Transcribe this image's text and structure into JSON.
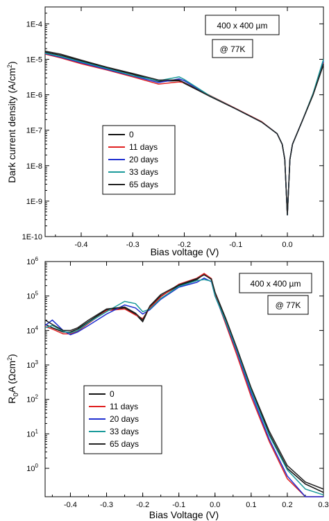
{
  "chart_data": [
    {
      "type": "line",
      "xlabel": "Bias voltage (V)",
      "ylabel": "Dark current density (A/cm",
      "ylabel_sup": "2",
      "ylabel_end": ")",
      "yscale": "log",
      "xlim": [
        -0.47,
        0.07
      ],
      "ylim": [
        1e-10,
        0.0003
      ],
      "x_ticks": [
        -0.4,
        -0.3,
        -0.2,
        -0.1,
        0.0
      ],
      "x_tick_labels": [
        "-0.4",
        "-0.3",
        "-0.2",
        "-0.1",
        "0.0"
      ],
      "y_ticks": [
        1e-10,
        1e-09,
        1e-08,
        1e-07,
        1e-06,
        1e-05,
        0.0001
      ],
      "y_tick_labels": [
        "1E-10",
        "1E-9",
        "1E-8",
        "1E-7",
        "1E-6",
        "1E-5",
        "1E-4"
      ],
      "annotations": [
        "400 x 400 µm",
        "@ 77K"
      ],
      "legend_position": "left-middle",
      "series": [
        {
          "name": "0",
          "color": "#111111",
          "x": [
            -0.47,
            -0.44,
            -0.4,
            -0.35,
            -0.3,
            -0.25,
            -0.21,
            -0.2,
            -0.15,
            -0.1,
            -0.05,
            -0.02,
            -0.01,
            -0.005,
            0.0,
            0.005,
            0.01,
            0.03,
            0.05,
            0.07
          ],
          "y": [
            1.6e-05,
            1.3e-05,
            9e-06,
            5.8e-06,
            3.8e-06,
            2.4e-06,
            2.5e-06,
            2.1e-06,
            9e-07,
            4e-07,
            1.7e-07,
            8e-08,
            4e-08,
            1.5e-08,
            4e-10,
            1.5e-08,
            4e-08,
            2e-07,
            1e-06,
            7e-06
          ]
        },
        {
          "name": "11 days",
          "color": "#e02020",
          "x": [
            -0.47,
            -0.44,
            -0.4,
            -0.35,
            -0.3,
            -0.25,
            -0.21,
            -0.2,
            -0.15,
            -0.1,
            -0.05,
            -0.02,
            -0.01,
            -0.005,
            0.0,
            0.005,
            0.01,
            0.03,
            0.05,
            0.07
          ],
          "y": [
            1.4e-05,
            1.1e-05,
            7.5e-06,
            5e-06,
            3.2e-06,
            2e-06,
            2.3e-06,
            2.2e-06,
            9.5e-07,
            4.1e-07,
            1.75e-07,
            8e-08,
            4e-08,
            1.5e-08,
            4e-10,
            1.5e-08,
            4e-08,
            2e-07,
            1.1e-06,
            8e-06
          ]
        },
        {
          "name": "20 days",
          "color": "#1f2fd0",
          "x": [
            -0.47,
            -0.44,
            -0.4,
            -0.35,
            -0.3,
            -0.25,
            -0.21,
            -0.2,
            -0.15,
            -0.1,
            -0.05,
            -0.02,
            -0.01,
            -0.005,
            0.0,
            0.005,
            0.01,
            0.03,
            0.05,
            0.07
          ],
          "y": [
            1.45e-05,
            1.15e-05,
            8e-06,
            5.2e-06,
            3.4e-06,
            2.2e-06,
            2.8e-06,
            2.5e-06,
            9.2e-07,
            4e-07,
            1.7e-07,
            8e-08,
            4e-08,
            1.5e-08,
            4e-10,
            1.5e-08,
            4e-08,
            2e-07,
            1.05e-06,
            9e-06
          ]
        },
        {
          "name": "33 days",
          "color": "#1a9a9a",
          "x": [
            -0.47,
            -0.44,
            -0.4,
            -0.35,
            -0.3,
            -0.25,
            -0.21,
            -0.2,
            -0.15,
            -0.1,
            -0.05,
            -0.02,
            -0.01,
            -0.005,
            0.0,
            0.005,
            0.01,
            0.03,
            0.05,
            0.07
          ],
          "y": [
            1.5e-05,
            1.2e-05,
            8.5e-06,
            5.5e-06,
            3.5e-06,
            2.5e-06,
            3.2e-06,
            2.7e-06,
            9.3e-07,
            4e-07,
            1.7e-07,
            8e-08,
            4e-08,
            1.5e-08,
            4e-10,
            1.5e-08,
            4e-08,
            2e-07,
            1.1e-06,
            1e-05
          ]
        },
        {
          "name": "65 days",
          "color": "#222222",
          "x": [
            -0.47,
            -0.44,
            -0.4,
            -0.35,
            -0.3,
            -0.25,
            -0.21,
            -0.2,
            -0.15,
            -0.1,
            -0.05,
            -0.02,
            -0.01,
            -0.005,
            0.0,
            0.005,
            0.01,
            0.03,
            0.05,
            0.07
          ],
          "y": [
            1.7e-05,
            1.4e-05,
            9.5e-06,
            6e-06,
            4e-06,
            2.6e-06,
            2.6e-06,
            2.2e-06,
            9e-07,
            4e-07,
            1.7e-07,
            8e-08,
            4e-08,
            1.5e-08,
            4e-10,
            1.5e-08,
            4e-08,
            2e-07,
            1e-06,
            7.5e-06
          ]
        }
      ]
    },
    {
      "type": "line",
      "xlabel": "Bias Voltage (V)",
      "ylabel_main": "R",
      "ylabel_sub": "0",
      "ylabel_mid": "A (Ωcm",
      "ylabel_sup": "2",
      "ylabel_end": ")",
      "yscale": "log",
      "xlim": [
        -0.47,
        0.3
      ],
      "ylim": [
        0.15,
        1000000
      ],
      "x_ticks": [
        -0.4,
        -0.3,
        -0.2,
        -0.1,
        0.0,
        0.1,
        0.2,
        0.3
      ],
      "x_tick_labels": [
        "-0.4",
        "-0.3",
        "-0.2",
        "-0.1",
        "0.0",
        "0.1",
        "0.2",
        "0.3"
      ],
      "y_ticks": [
        1,
        10,
        100,
        1000,
        10000,
        100000,
        1000000
      ],
      "y_tick_labels": [
        "10",
        "10",
        "10",
        "10",
        "10",
        "10",
        "10"
      ],
      "y_tick_exponents": [
        "0",
        "1",
        "2",
        "3",
        "4",
        "5",
        "6"
      ],
      "annotations": [
        "400 x 400 µm",
        "@ 77K"
      ],
      "legend_position": "bottom-left",
      "series": [
        {
          "name": "0",
          "color": "#111111",
          "x": [
            -0.47,
            -0.45,
            -0.42,
            -0.4,
            -0.38,
            -0.35,
            -0.3,
            -0.25,
            -0.22,
            -0.2,
            -0.18,
            -0.15,
            -0.1,
            -0.05,
            -0.03,
            -0.01,
            0.0,
            0.03,
            0.06,
            0.1,
            0.15,
            0.2,
            0.25,
            0.3
          ],
          "y": [
            15000,
            12000,
            9000,
            9000,
            11000,
            18000,
            40000,
            45000,
            30000,
            18000,
            50000,
            100000,
            200000,
            300000,
            430000,
            300000,
            120000,
            20000,
            3000,
            200,
            10,
            1,
            0.35,
            0.2
          ]
        },
        {
          "name": "11 days",
          "color": "#e02020",
          "x": [
            -0.47,
            -0.45,
            -0.42,
            -0.4,
            -0.38,
            -0.35,
            -0.3,
            -0.25,
            -0.22,
            -0.2,
            -0.18,
            -0.15,
            -0.1,
            -0.05,
            -0.03,
            -0.01,
            0.0,
            0.03,
            0.06,
            0.1,
            0.15,
            0.2,
            0.25,
            0.3
          ],
          "y": [
            13000,
            11000,
            8000,
            8000,
            9500,
            16000,
            38000,
            42000,
            28000,
            22000,
            45000,
            95000,
            220000,
            330000,
            450000,
            320000,
            110000,
            15000,
            2000,
            120,
            6,
            0.5,
            0.15,
            0.15
          ]
        },
        {
          "name": "20 days",
          "color": "#1f2fd0",
          "x": [
            -0.47,
            -0.45,
            -0.42,
            -0.4,
            -0.38,
            -0.35,
            -0.3,
            -0.25,
            -0.22,
            -0.2,
            -0.18,
            -0.15,
            -0.1,
            -0.05,
            -0.03,
            -0.01,
            0.0,
            0.03,
            0.06,
            0.1,
            0.15,
            0.2,
            0.25,
            0.3
          ],
          "y": [
            14000,
            20000,
            10000,
            7500,
            9000,
            14000,
            30000,
            55000,
            45000,
            30000,
            40000,
            80000,
            180000,
            250000,
            330000,
            260000,
            100000,
            17000,
            2500,
            150,
            7,
            0.6,
            0.15,
            0.15
          ]
        },
        {
          "name": "33 days",
          "color": "#1a9a9a",
          "x": [
            -0.47,
            -0.45,
            -0.42,
            -0.4,
            -0.38,
            -0.35,
            -0.3,
            -0.25,
            -0.22,
            -0.2,
            -0.18,
            -0.15,
            -0.1,
            -0.05,
            -0.03,
            -0.01,
            0.0,
            0.03,
            0.06,
            0.1,
            0.15,
            0.2,
            0.25,
            0.3
          ],
          "y": [
            12000,
            14000,
            9500,
            8500,
            10000,
            17000,
            35000,
            70000,
            60000,
            35000,
            42000,
            85000,
            190000,
            280000,
            300000,
            270000,
            100000,
            18000,
            2800,
            180,
            9,
            0.9,
            0.25,
            0.17
          ]
        },
        {
          "name": "65 days",
          "color": "#222222",
          "x": [
            -0.47,
            -0.45,
            -0.42,
            -0.4,
            -0.38,
            -0.35,
            -0.3,
            -0.25,
            -0.22,
            -0.2,
            -0.18,
            -0.15,
            -0.1,
            -0.05,
            -0.03,
            -0.01,
            0.0,
            0.03,
            0.06,
            0.1,
            0.15,
            0.2,
            0.25,
            0.3
          ],
          "y": [
            20000,
            15000,
            10000,
            10000,
            12000,
            20000,
            42000,
            48000,
            32000,
            20000,
            52000,
            110000,
            210000,
            320000,
            410000,
            310000,
            130000,
            22000,
            3200,
            220,
            12,
            1.2,
            0.4,
            0.25
          ]
        }
      ]
    }
  ]
}
